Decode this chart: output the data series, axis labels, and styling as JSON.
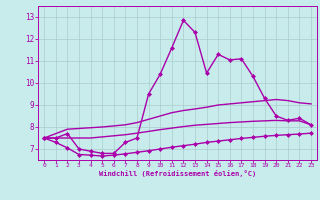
{
  "xlabel": "Windchill (Refroidissement éolien,°C)",
  "xlim": [
    -0.5,
    23.5
  ],
  "ylim": [
    6.5,
    13.5
  ],
  "yticks": [
    7,
    8,
    9,
    10,
    11,
    12,
    13
  ],
  "xticks": [
    0,
    1,
    2,
    3,
    4,
    5,
    6,
    7,
    8,
    9,
    10,
    11,
    12,
    13,
    14,
    15,
    16,
    17,
    18,
    19,
    20,
    21,
    22,
    23
  ],
  "bg_color": "#c8ecec",
  "line_color": "#aa00aa",
  "grid_color": "#aacccc",
  "lines": [
    {
      "x": [
        0,
        1,
        2,
        3,
        4,
        5,
        6,
        7,
        8,
        9,
        10,
        11,
        12,
        13,
        14,
        15,
        16,
        17,
        18,
        19,
        20,
        21,
        22,
        23
      ],
      "y": [
        7.5,
        7.5,
        7.7,
        7.0,
        6.9,
        6.8,
        6.8,
        7.3,
        7.5,
        9.5,
        10.4,
        11.6,
        12.85,
        12.3,
        10.45,
        11.3,
        11.05,
        11.1,
        10.3,
        9.3,
        8.5,
        8.3,
        8.4,
        8.1
      ],
      "marker": "D",
      "markersize": 2.0,
      "linewidth": 1.0
    },
    {
      "x": [
        0,
        2,
        5,
        6,
        7,
        8,
        9,
        10,
        11,
        12,
        13,
        14,
        15,
        16,
        17,
        18,
        19,
        20,
        21,
        22,
        23
      ],
      "y": [
        7.5,
        7.9,
        8.0,
        8.05,
        8.1,
        8.2,
        8.35,
        8.5,
        8.65,
        8.75,
        8.82,
        8.9,
        9.0,
        9.05,
        9.1,
        9.15,
        9.2,
        9.25,
        9.2,
        9.1,
        9.05
      ],
      "marker": null,
      "markersize": 0,
      "linewidth": 1.0
    },
    {
      "x": [
        0,
        1,
        2,
        3,
        4,
        5,
        6,
        7,
        8,
        9,
        10,
        11,
        12,
        13,
        14,
        15,
        16,
        17,
        18,
        19,
        20,
        21,
        22,
        23
      ],
      "y": [
        7.5,
        7.5,
        7.5,
        7.5,
        7.5,
        7.55,
        7.6,
        7.65,
        7.72,
        7.8,
        7.88,
        7.95,
        8.02,
        8.08,
        8.12,
        8.16,
        8.2,
        8.23,
        8.26,
        8.28,
        8.3,
        8.28,
        8.28,
        8.1
      ],
      "marker": null,
      "markersize": 0,
      "linewidth": 1.0
    },
    {
      "x": [
        0,
        1,
        2,
        3,
        4,
        5,
        6,
        7,
        8,
        9,
        10,
        11,
        12,
        13,
        14,
        15,
        16,
        17,
        18,
        19,
        20,
        21,
        22,
        23
      ],
      "y": [
        7.5,
        7.3,
        7.05,
        6.75,
        6.72,
        6.68,
        6.72,
        6.78,
        6.85,
        6.92,
        7.0,
        7.08,
        7.15,
        7.22,
        7.3,
        7.36,
        7.42,
        7.48,
        7.53,
        7.58,
        7.62,
        7.65,
        7.68,
        7.72
      ],
      "marker": "D",
      "markersize": 2.0,
      "linewidth": 1.0
    }
  ]
}
